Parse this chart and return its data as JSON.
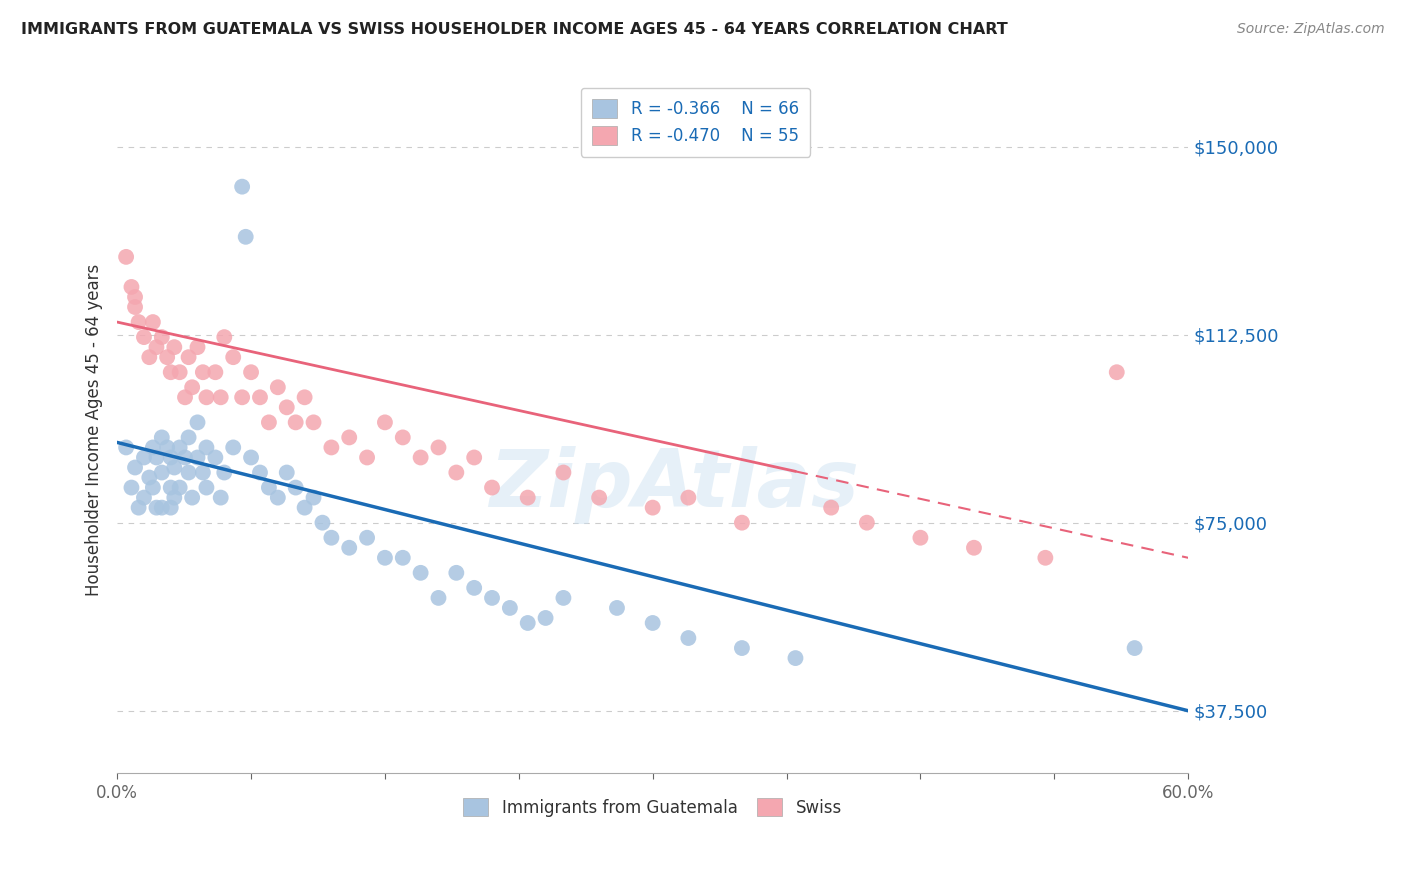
{
  "title": "IMMIGRANTS FROM GUATEMALA VS SWISS HOUSEHOLDER INCOME AGES 45 - 64 YEARS CORRELATION CHART",
  "source": "Source: ZipAtlas.com",
  "ylabel": "Householder Income Ages 45 - 64 years",
  "xlim": [
    0.0,
    0.6
  ],
  "ylim": [
    25000,
    162000
  ],
  "yticks": [
    37500,
    75000,
    112500,
    150000
  ],
  "ytick_labels": [
    "$37,500",
    "$75,000",
    "$112,500",
    "$150,000"
  ],
  "xticks": [
    0.0,
    0.075,
    0.15,
    0.225,
    0.3,
    0.375,
    0.45,
    0.525,
    0.6
  ],
  "legend_label1": "Immigrants from Guatemala",
  "legend_label2": "Swiss",
  "R1": -0.366,
  "N1": 66,
  "R2": -0.47,
  "N2": 55,
  "color1": "#a8c4e0",
  "color2": "#f4a7b0",
  "line_color1": "#1a6bb5",
  "line_color2": "#e8637a",
  "background_color": "#ffffff",
  "grid_color": "#cccccc",
  "scatter1_x": [
    0.005,
    0.008,
    0.01,
    0.012,
    0.015,
    0.015,
    0.018,
    0.02,
    0.02,
    0.022,
    0.022,
    0.025,
    0.025,
    0.025,
    0.028,
    0.03,
    0.03,
    0.03,
    0.032,
    0.032,
    0.035,
    0.035,
    0.038,
    0.04,
    0.04,
    0.042,
    0.045,
    0.045,
    0.048,
    0.05,
    0.05,
    0.055,
    0.058,
    0.06,
    0.065,
    0.07,
    0.072,
    0.075,
    0.08,
    0.085,
    0.09,
    0.095,
    0.1,
    0.105,
    0.11,
    0.115,
    0.12,
    0.13,
    0.14,
    0.15,
    0.16,
    0.17,
    0.18,
    0.19,
    0.2,
    0.21,
    0.22,
    0.23,
    0.24,
    0.25,
    0.28,
    0.3,
    0.32,
    0.35,
    0.38,
    0.57
  ],
  "scatter1_y": [
    90000,
    82000,
    86000,
    78000,
    88000,
    80000,
    84000,
    90000,
    82000,
    88000,
    78000,
    92000,
    85000,
    78000,
    90000,
    88000,
    82000,
    78000,
    86000,
    80000,
    90000,
    82000,
    88000,
    92000,
    85000,
    80000,
    95000,
    88000,
    85000,
    90000,
    82000,
    88000,
    80000,
    85000,
    90000,
    142000,
    132000,
    88000,
    85000,
    82000,
    80000,
    85000,
    82000,
    78000,
    80000,
    75000,
    72000,
    70000,
    72000,
    68000,
    68000,
    65000,
    60000,
    65000,
    62000,
    60000,
    58000,
    55000,
    56000,
    60000,
    58000,
    55000,
    52000,
    50000,
    48000,
    50000
  ],
  "scatter2_x": [
    0.005,
    0.008,
    0.01,
    0.012,
    0.01,
    0.015,
    0.018,
    0.02,
    0.022,
    0.025,
    0.028,
    0.03,
    0.032,
    0.035,
    0.038,
    0.04,
    0.042,
    0.045,
    0.048,
    0.05,
    0.055,
    0.058,
    0.06,
    0.065,
    0.07,
    0.075,
    0.08,
    0.085,
    0.09,
    0.095,
    0.1,
    0.105,
    0.11,
    0.12,
    0.13,
    0.14,
    0.15,
    0.16,
    0.17,
    0.18,
    0.19,
    0.2,
    0.21,
    0.23,
    0.25,
    0.27,
    0.3,
    0.32,
    0.35,
    0.4,
    0.42,
    0.45,
    0.48,
    0.52,
    0.56
  ],
  "scatter2_y": [
    128000,
    122000,
    118000,
    115000,
    120000,
    112000,
    108000,
    115000,
    110000,
    112000,
    108000,
    105000,
    110000,
    105000,
    100000,
    108000,
    102000,
    110000,
    105000,
    100000,
    105000,
    100000,
    112000,
    108000,
    100000,
    105000,
    100000,
    95000,
    102000,
    98000,
    95000,
    100000,
    95000,
    90000,
    92000,
    88000,
    95000,
    92000,
    88000,
    90000,
    85000,
    88000,
    82000,
    80000,
    85000,
    80000,
    78000,
    80000,
    75000,
    78000,
    75000,
    72000,
    70000,
    68000,
    105000
  ],
  "line1_x0": 0.0,
  "line1_y0": 91000,
  "line1_x1": 0.6,
  "line1_y1": 37500,
  "line2_x0": 0.0,
  "line2_y0": 115000,
  "line2_x1": 0.6,
  "line2_y1": 68000
}
